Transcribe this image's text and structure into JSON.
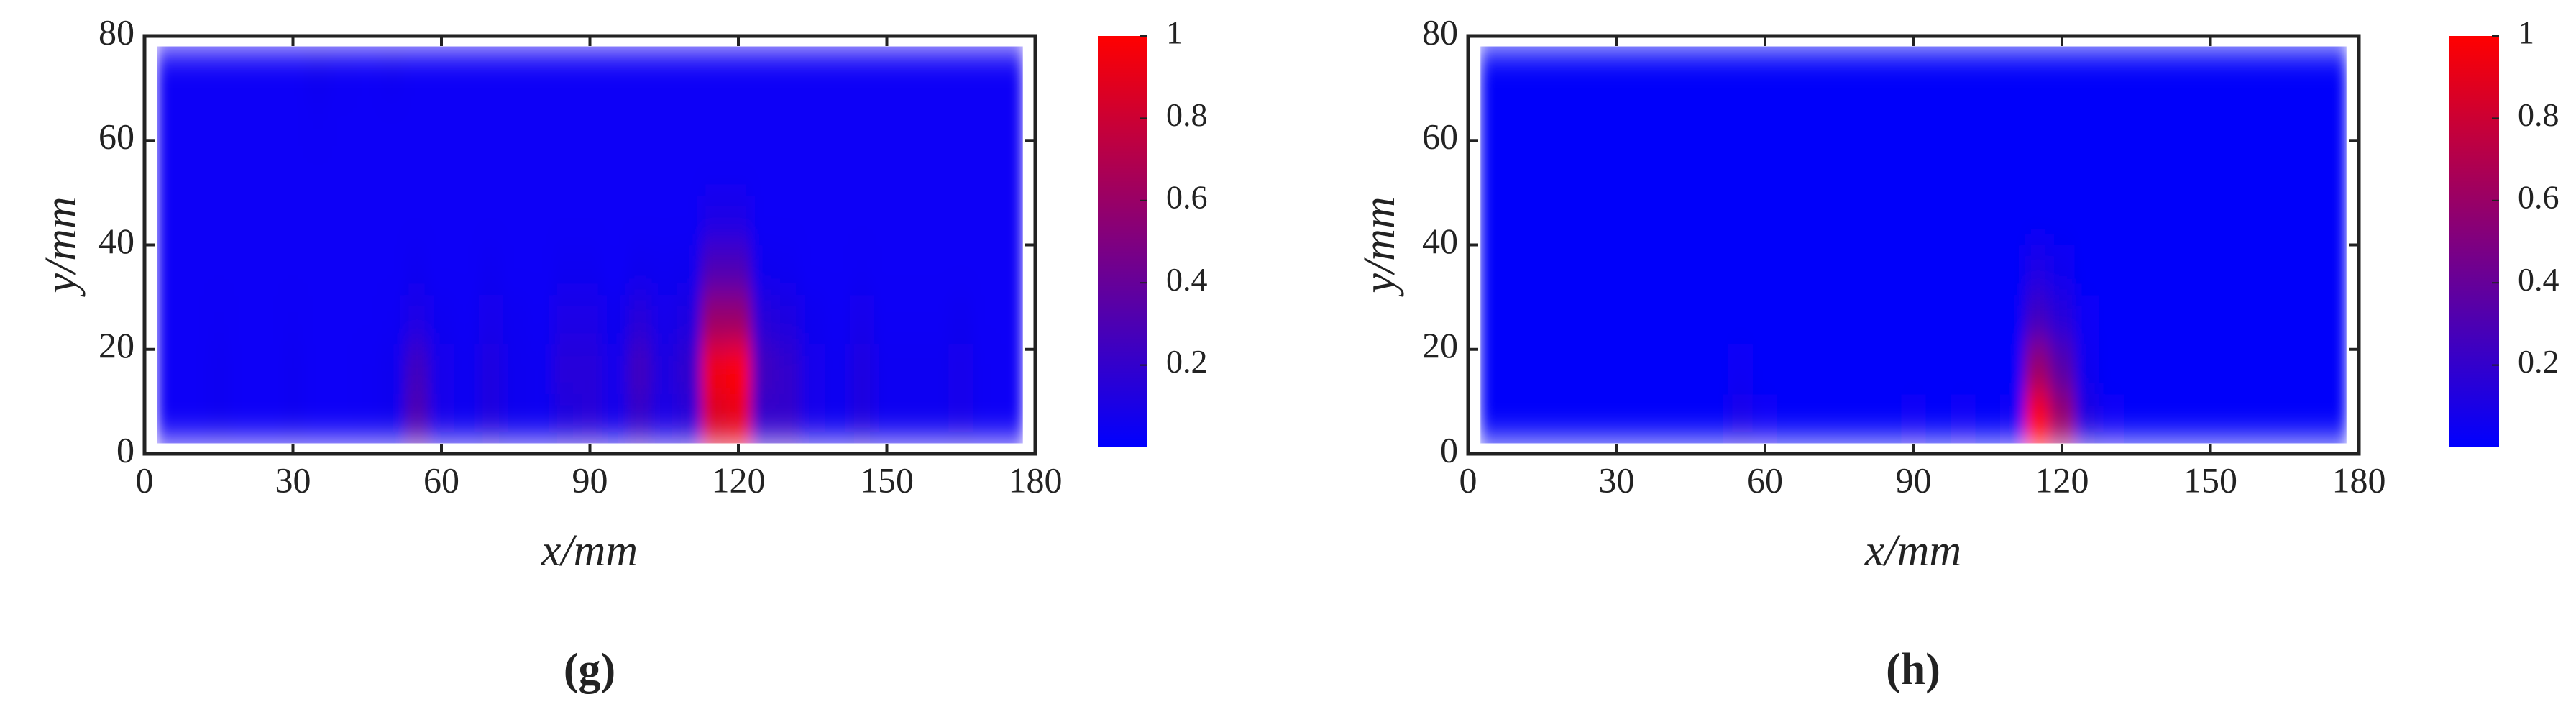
{
  "chart_data": [
    {
      "type": "heatmap",
      "panel_label": "(g)",
      "xlabel": "x/mm",
      "ylabel": "y/mm",
      "xlim": [
        0,
        180
      ],
      "ylim": [
        0,
        80
      ],
      "xticks": [
        0,
        30,
        60,
        90,
        120,
        150,
        180
      ],
      "yticks": [
        0,
        20,
        40,
        60,
        80
      ],
      "clim": [
        0,
        1
      ],
      "cticks": [
        0.2,
        0.4,
        0.6,
        0.8,
        1
      ],
      "colormap": [
        "#0000ff",
        "#ff0000"
      ],
      "x": [
        5,
        10,
        15,
        20,
        25,
        30,
        35,
        40,
        45,
        50,
        55,
        60,
        65,
        70,
        75,
        80,
        85,
        90,
        95,
        100,
        105,
        110,
        115,
        120,
        125,
        130,
        135,
        140,
        145,
        150,
        155,
        160,
        165,
        170,
        175
      ],
      "y": [
        6.75,
        16.25,
        25.75,
        35.25,
        44.75,
        54.25,
        63.75,
        73.25
      ],
      "values": [
        [
          0.03,
          0.03,
          0.05,
          0.03,
          0.03,
          0.05,
          0.03,
          0.03,
          0.04,
          0.06,
          0.3,
          0.08,
          0.05,
          0.12,
          0.06,
          0.05,
          0.12,
          0.15,
          0.08,
          0.2,
          0.1,
          0.15,
          0.85,
          0.9,
          0.2,
          0.2,
          0.08,
          0.05,
          0.12,
          0.05,
          0.05,
          0.05,
          0.08,
          0.04,
          0.03
        ],
        [
          0.03,
          0.03,
          0.05,
          0.03,
          0.03,
          0.05,
          0.03,
          0.03,
          0.04,
          0.06,
          0.25,
          0.08,
          0.05,
          0.12,
          0.06,
          0.05,
          0.15,
          0.15,
          0.08,
          0.25,
          0.12,
          0.2,
          0.95,
          1,
          0.25,
          0.2,
          0.08,
          0.05,
          0.12,
          0.05,
          0.05,
          0.05,
          0.08,
          0.04,
          0.03
        ],
        [
          0.03,
          0.03,
          0.04,
          0.03,
          0.03,
          0.04,
          0.03,
          0.03,
          0.03,
          0.04,
          0.1,
          0.05,
          0.04,
          0.08,
          0.05,
          0.04,
          0.1,
          0.1,
          0.06,
          0.15,
          0.08,
          0.12,
          0.6,
          0.6,
          0.15,
          0.12,
          0.06,
          0.04,
          0.08,
          0.04,
          0.04,
          0.04,
          0.06,
          0.03,
          0.03
        ],
        [
          0.03,
          0.03,
          0.03,
          0.03,
          0.03,
          0.03,
          0.03,
          0.03,
          0.03,
          0.03,
          0.05,
          0.03,
          0.03,
          0.05,
          0.03,
          0.03,
          0.05,
          0.05,
          0.03,
          0.06,
          0.05,
          0.06,
          0.3,
          0.3,
          0.06,
          0.05,
          0.03,
          0.03,
          0.04,
          0.03,
          0.03,
          0.03,
          0.03,
          0.03,
          0.03
        ],
        [
          0.03,
          0.03,
          0.03,
          0.03,
          0.03,
          0.03,
          0.03,
          0.03,
          0.03,
          0.03,
          0.03,
          0.03,
          0.03,
          0.03,
          0.03,
          0.03,
          0.03,
          0.03,
          0.03,
          0.03,
          0.03,
          0.03,
          0.1,
          0.1,
          0.03,
          0.03,
          0.03,
          0.03,
          0.03,
          0.03,
          0.03,
          0.03,
          0.03,
          0.03,
          0.03
        ],
        [
          0.03,
          0.03,
          0.03,
          0.03,
          0.03,
          0.03,
          0.03,
          0.03,
          0.03,
          0.03,
          0.03,
          0.03,
          0.03,
          0.03,
          0.03,
          0.03,
          0.03,
          0.03,
          0.03,
          0.03,
          0.03,
          0.03,
          0.03,
          0.03,
          0.03,
          0.03,
          0.03,
          0.03,
          0.03,
          0.03,
          0.03,
          0.03,
          0.03,
          0.03,
          0.03
        ],
        [
          0.03,
          0.03,
          0.03,
          0.03,
          0.03,
          0.03,
          0.04,
          0.03,
          0.03,
          0.03,
          0.03,
          0.03,
          0.03,
          0.03,
          0.03,
          0.03,
          0.03,
          0.03,
          0.03,
          0.03,
          0.03,
          0.03,
          0.03,
          0.03,
          0.03,
          0.03,
          0.03,
          0.03,
          0.03,
          0.03,
          0.03,
          0.03,
          0.03,
          0.03,
          0.03
        ],
        [
          0.03,
          0.03,
          0.03,
          0.03,
          0.03,
          0.03,
          0.06,
          0.04,
          0.03,
          0.05,
          0.03,
          0.03,
          0.03,
          0.03,
          0.03,
          0.03,
          0.03,
          0.03,
          0.03,
          0.03,
          0.03,
          0.03,
          0.03,
          0.03,
          0.03,
          0.03,
          0.03,
          0.03,
          0.03,
          0.03,
          0.03,
          0.03,
          0.03,
          0.03,
          0.03
        ]
      ]
    },
    {
      "type": "heatmap",
      "panel_label": "(h)",
      "xlabel": "x/mm",
      "ylabel": "y/mm",
      "xlim": [
        0,
        180
      ],
      "ylim": [
        0,
        80
      ],
      "xticks": [
        0,
        30,
        60,
        90,
        120,
        150,
        180
      ],
      "yticks": [
        0,
        20,
        40,
        60,
        80
      ],
      "clim": [
        0,
        1
      ],
      "cticks": [
        0.2,
        0.4,
        0.6,
        0.8,
        1
      ],
      "colormap": [
        "#0000ff",
        "#ff0000"
      ],
      "x": [
        5,
        10,
        15,
        20,
        25,
        30,
        35,
        40,
        45,
        50,
        55,
        60,
        65,
        70,
        75,
        80,
        85,
        90,
        95,
        100,
        105,
        110,
        115,
        120,
        125,
        130,
        135,
        140,
        145,
        150,
        155,
        160,
        165,
        170,
        175
      ],
      "y": [
        6.75,
        16.25,
        25.75,
        35.25,
        44.75,
        54.25,
        63.75,
        73.25
      ],
      "values": [
        [
          0.02,
          0.02,
          0.02,
          0.02,
          0.02,
          0.02,
          0.02,
          0.02,
          0.02,
          0.02,
          0.08,
          0.03,
          0.02,
          0.02,
          0.02,
          0.02,
          0.02,
          0.03,
          0.02,
          0.03,
          0.02,
          0.03,
          1,
          0.6,
          0.12,
          0.03,
          0.02,
          0.02,
          0.02,
          0.02,
          0.02,
          0.02,
          0.02,
          0.02,
          0.02
        ],
        [
          0.02,
          0.02,
          0.02,
          0.02,
          0.02,
          0.02,
          0.02,
          0.02,
          0.02,
          0.02,
          0.04,
          0.02,
          0.02,
          0.02,
          0.02,
          0.02,
          0.02,
          0.02,
          0.02,
          0.02,
          0.02,
          0.02,
          0.6,
          0.35,
          0.06,
          0.02,
          0.02,
          0.02,
          0.02,
          0.02,
          0.02,
          0.02,
          0.02,
          0.02,
          0.02
        ],
        [
          0.02,
          0.02,
          0.02,
          0.02,
          0.02,
          0.02,
          0.02,
          0.02,
          0.02,
          0.02,
          0.02,
          0.02,
          0.02,
          0.02,
          0.02,
          0.02,
          0.02,
          0.02,
          0.02,
          0.02,
          0.02,
          0.02,
          0.25,
          0.15,
          0.03,
          0.02,
          0.02,
          0.02,
          0.02,
          0.02,
          0.02,
          0.02,
          0.02,
          0.02,
          0.02
        ],
        [
          0.02,
          0.02,
          0.02,
          0.02,
          0.02,
          0.02,
          0.02,
          0.02,
          0.02,
          0.02,
          0.02,
          0.02,
          0.02,
          0.02,
          0.02,
          0.02,
          0.02,
          0.02,
          0.02,
          0.02,
          0.02,
          0.02,
          0.1,
          0.06,
          0.02,
          0.02,
          0.02,
          0.02,
          0.02,
          0.02,
          0.02,
          0.02,
          0.02,
          0.02,
          0.02
        ],
        [
          0.02,
          0.02,
          0.02,
          0.02,
          0.02,
          0.02,
          0.02,
          0.02,
          0.02,
          0.02,
          0.02,
          0.02,
          0.02,
          0.02,
          0.02,
          0.02,
          0.02,
          0.02,
          0.02,
          0.02,
          0.02,
          0.02,
          0.02,
          0.02,
          0.02,
          0.02,
          0.02,
          0.02,
          0.02,
          0.02,
          0.02,
          0.02,
          0.02,
          0.02,
          0.02
        ],
        [
          0.02,
          0.02,
          0.02,
          0.02,
          0.02,
          0.02,
          0.02,
          0.02,
          0.02,
          0.02,
          0.02,
          0.02,
          0.02,
          0.02,
          0.02,
          0.02,
          0.02,
          0.02,
          0.02,
          0.02,
          0.02,
          0.02,
          0.02,
          0.02,
          0.02,
          0.02,
          0.02,
          0.02,
          0.02,
          0.02,
          0.02,
          0.02,
          0.02,
          0.02,
          0.02
        ],
        [
          0.02,
          0.02,
          0.02,
          0.02,
          0.02,
          0.02,
          0.02,
          0.02,
          0.02,
          0.02,
          0.02,
          0.02,
          0.02,
          0.02,
          0.02,
          0.02,
          0.02,
          0.02,
          0.02,
          0.02,
          0.02,
          0.02,
          0.02,
          0.02,
          0.02,
          0.02,
          0.02,
          0.02,
          0.02,
          0.02,
          0.02,
          0.02,
          0.02,
          0.02,
          0.02
        ],
        [
          0.02,
          0.02,
          0.02,
          0.02,
          0.02,
          0.02,
          0.02,
          0.02,
          0.02,
          0.02,
          0.02,
          0.02,
          0.02,
          0.02,
          0.02,
          0.02,
          0.02,
          0.02,
          0.02,
          0.02,
          0.02,
          0.02,
          0.02,
          0.02,
          0.02,
          0.02,
          0.02,
          0.02,
          0.02,
          0.02,
          0.02,
          0.02,
          0.02,
          0.02,
          0.02
        ]
      ]
    }
  ]
}
